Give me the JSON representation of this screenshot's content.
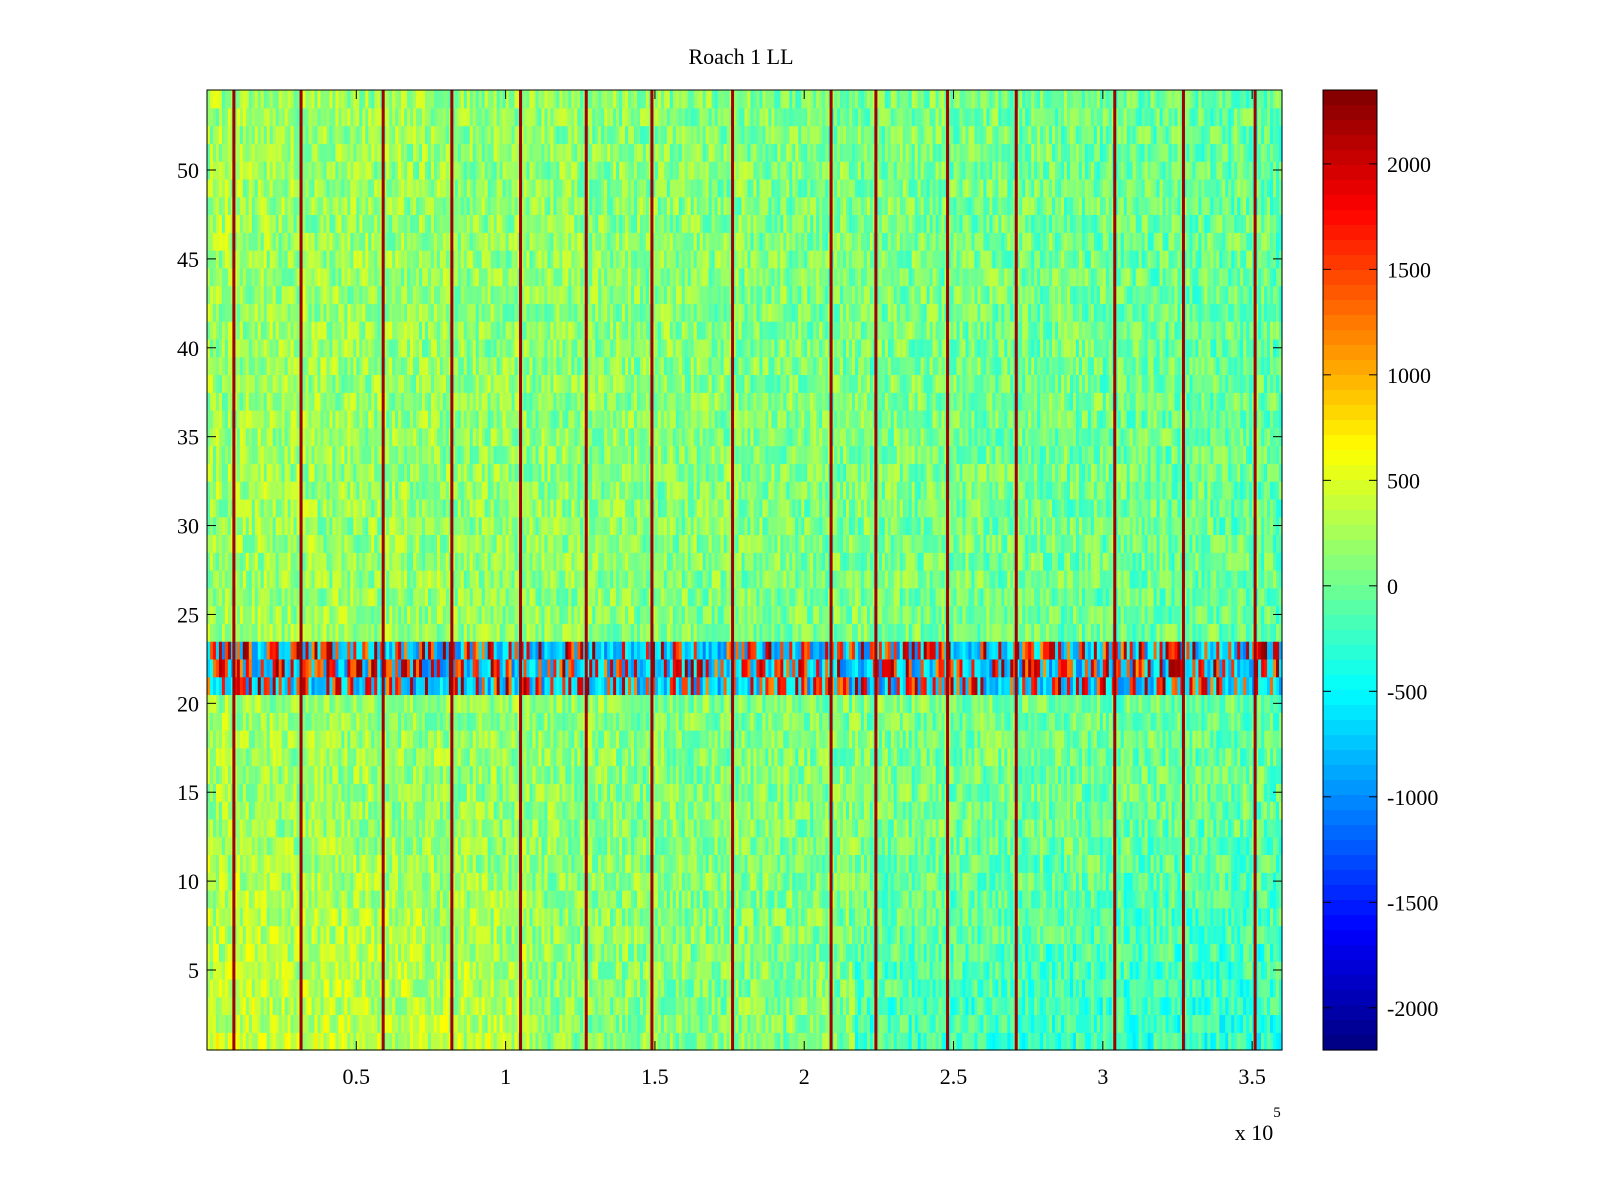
{
  "chart_data": {
    "type": "heatmap",
    "title": "Roach 1 LL",
    "xlabel": "",
    "ylabel": "",
    "x_multiplier_label": "x 10",
    "x_multiplier_exponent": "5",
    "xlim": [
      0,
      360000
    ],
    "ylim": [
      0.5,
      54.5
    ],
    "x_ticks": [
      0.5,
      1,
      1.5,
      2,
      2.5,
      3,
      3.5
    ],
    "x_tick_labels": [
      "0.5",
      "1",
      "1.5",
      "2",
      "2.5",
      "3",
      "3.5"
    ],
    "y_ticks": [
      5,
      10,
      15,
      20,
      25,
      30,
      35,
      40,
      45,
      50
    ],
    "y_tick_labels": [
      "5",
      "10",
      "15",
      "20",
      "25",
      "30",
      "35",
      "40",
      "45",
      "50"
    ],
    "grid": false,
    "colormap": "jet",
    "colorbar": {
      "clim": [
        -2200,
        2350
      ],
      "ticks": [
        2000,
        1500,
        1000,
        500,
        0,
        -500,
        -1000,
        -1500,
        -2000
      ],
      "tick_labels": [
        "2000",
        "1500",
        "1000",
        "500",
        "0",
        "-500",
        "-1000",
        "-1500",
        "-2000"
      ]
    },
    "rows": 54,
    "description_of_values": {
      "background_range": [
        -400,
        700
      ],
      "high_value_vertical_lines_x": [
        9000,
        31500,
        59000,
        82000,
        105000,
        127000,
        149000,
        176000,
        209000,
        224000,
        248000,
        271000,
        304000,
        327000,
        351000
      ],
      "high_value_line_value": 2200,
      "anomalous_band_rows": [
        21,
        22,
        23
      ],
      "anomalous_band_range": [
        -1200,
        2300
      ]
    }
  }
}
